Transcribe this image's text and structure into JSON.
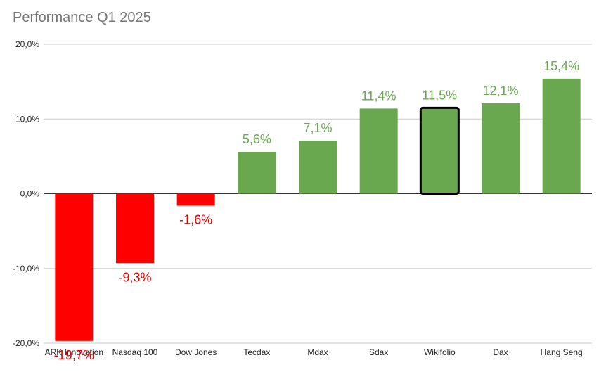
{
  "chart_data": {
    "type": "bar",
    "title": "Performance Q1 2025",
    "categories": [
      "ARK Innovation",
      "Nasdaq 100",
      "Dow Jones",
      "Tecdax",
      "Mdax",
      "Sdax",
      "Wikifolio",
      "Dax",
      "Hang Seng"
    ],
    "values": [
      -19.7,
      -9.3,
      -1.6,
      5.6,
      7.1,
      11.4,
      11.5,
      12.1,
      15.4
    ],
    "data_labels": [
      "-19,7%",
      "-9,3%",
      "-1,6%",
      "5,6%",
      "7,1%",
      "11,4%",
      "11,5%",
      "12,1%",
      "15,4%"
    ],
    "highlighted": "Wikifolio",
    "y_ticks": [
      20,
      10,
      0,
      -10,
      -20
    ],
    "y_tick_labels": [
      "20,0%",
      "10,0%",
      "0,0%",
      "-10,0%",
      "-20,0%"
    ],
    "ylim": [
      -20,
      20
    ],
    "xlabel": "",
    "ylabel": "",
    "grid": true,
    "legend": "none",
    "colors": {
      "positive": "#6aa84f",
      "negative": "#ff0000",
      "positive_label": "#6aa84f",
      "negative_label": "#e00000",
      "highlight_border": "#000000",
      "gridline": "#cccccc",
      "zero_line": "#333333"
    }
  }
}
